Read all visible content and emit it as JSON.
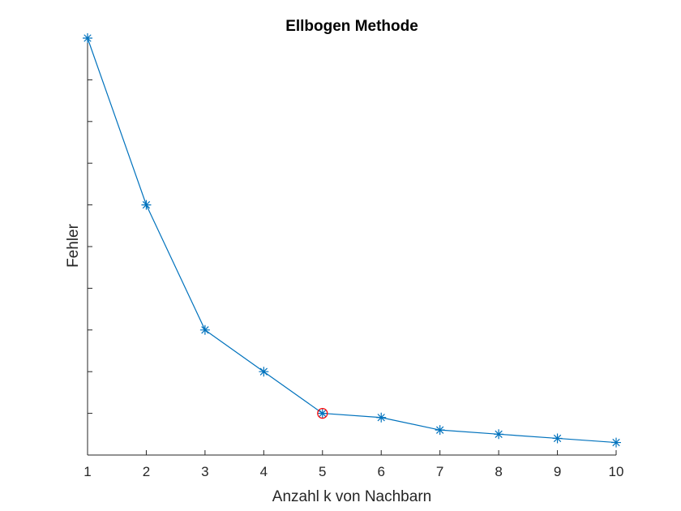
{
  "chart_data": {
    "type": "line",
    "title": "Ellbogen Methode",
    "xlabel": "Anzahl k von Nachbarn",
    "ylabel": "Fehler",
    "x": [
      1,
      2,
      3,
      4,
      5,
      6,
      7,
      8,
      9,
      10
    ],
    "xlim": [
      1,
      10
    ],
    "ylim": [
      0,
      10
    ],
    "y_tick_labels_shown": false,
    "grid": false,
    "series": [
      {
        "values": [
          10,
          6,
          3,
          2,
          1,
          0.9,
          0.6,
          0.5,
          0.4,
          0.3
        ],
        "color": "#0072BD",
        "marker": "asterisk"
      }
    ],
    "highlight": {
      "x": 5,
      "y": 1,
      "color": "#FF0000",
      "marker": "circle"
    }
  }
}
